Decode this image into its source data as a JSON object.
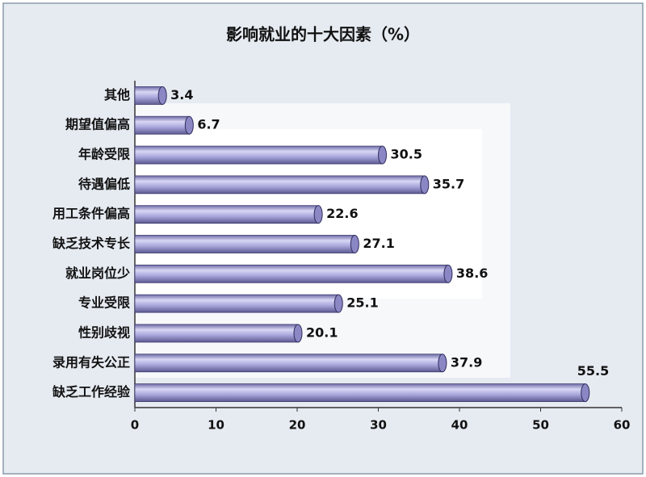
{
  "chart_data": {
    "type": "bar",
    "orientation": "horizontal",
    "title": "影响就业的十大因素（%）",
    "categories": [
      "其他",
      "期望值偏高",
      "年龄受限",
      "待遇偏低",
      "用工条件偏高",
      "缺乏技术专长",
      "就业岗位少",
      "专业受限",
      "性别歧视",
      "录用有失公正",
      "缺乏工作经验"
    ],
    "values": [
      3.4,
      6.7,
      30.5,
      35.7,
      22.6,
      27.1,
      38.6,
      25.1,
      20.1,
      37.9,
      55.5
    ],
    "color": "#a9a7dc",
    "xlim": [
      0,
      60
    ],
    "xticks": [
      0,
      10,
      20,
      30,
      40,
      50,
      60
    ]
  }
}
